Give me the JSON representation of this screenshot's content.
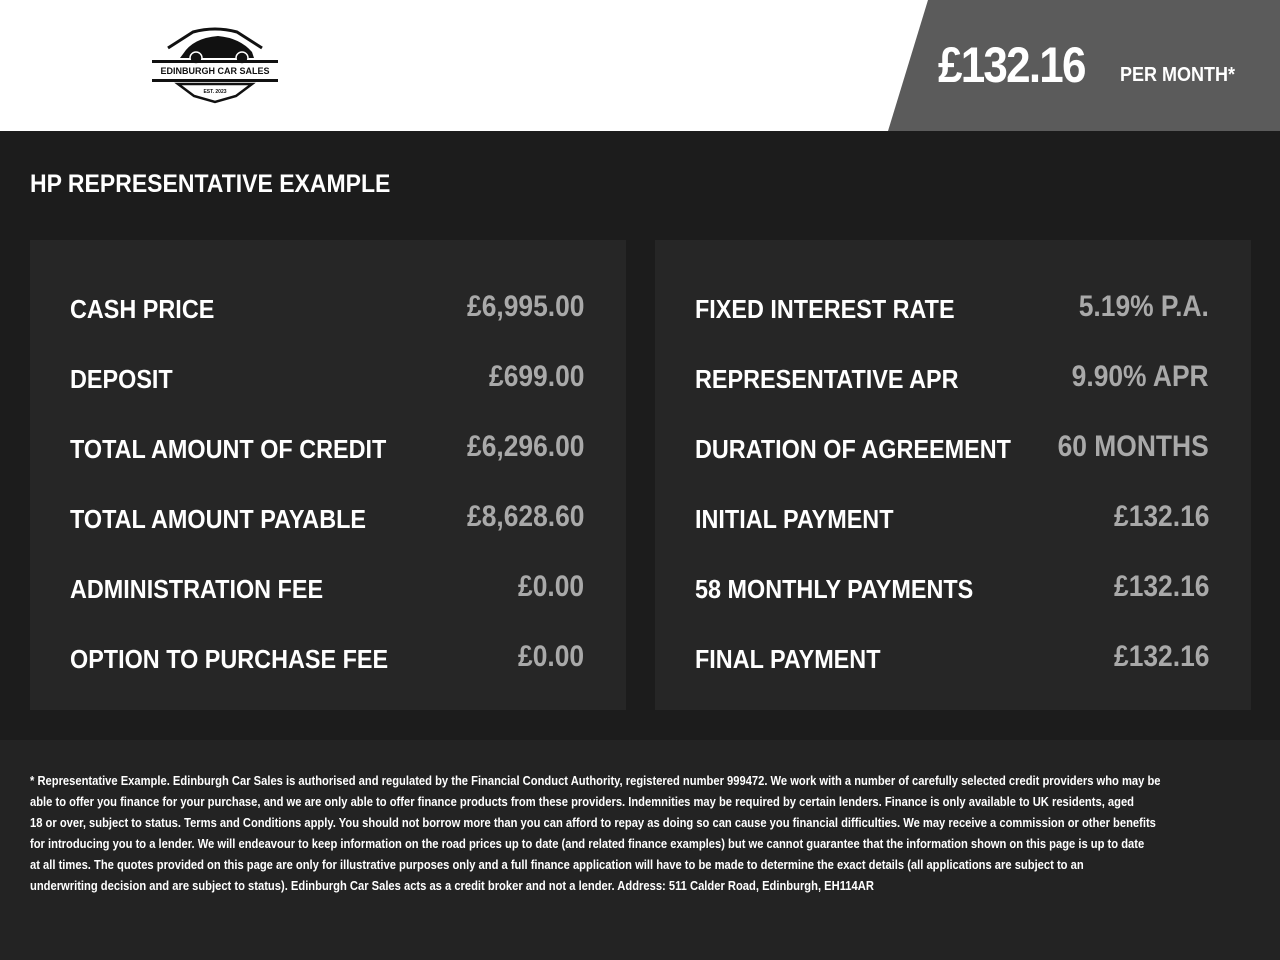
{
  "header": {
    "logo": {
      "name": "Edinburgh Car Sales",
      "text": "EDINBURGH CAR SALES",
      "est": "EST. 2023"
    },
    "price": "£132.16",
    "per_month": "PER MONTH*",
    "colors": {
      "price_box": "#5b5b5b",
      "background": "#1c1c1c",
      "panel": "#262626",
      "value_text": "#a9a9a9"
    }
  },
  "heading": "HP REPRESENTATIVE EXAMPLE",
  "left_panel": [
    {
      "label": "CASH PRICE",
      "value": "£6,995.00"
    },
    {
      "label": "DEPOSIT",
      "value": "£699.00"
    },
    {
      "label": "TOTAL AMOUNT OF CREDIT",
      "value": "£6,296.00"
    },
    {
      "label": "TOTAL AMOUNT PAYABLE",
      "value": "£8,628.60"
    },
    {
      "label": "ADMINISTRATION FEE",
      "value": "£0.00"
    },
    {
      "label": "OPTION TO PURCHASE FEE",
      "value": "£0.00"
    }
  ],
  "right_panel": [
    {
      "label": "FIXED INTEREST RATE",
      "value": "5.19% P.A."
    },
    {
      "label": "REPRESENTATIVE APR",
      "value": "9.90% APR"
    },
    {
      "label": "DURATION OF AGREEMENT",
      "value": "60 MONTHS"
    },
    {
      "label": "INITIAL PAYMENT",
      "value": "£132.16"
    },
    {
      "label": "58 MONTHLY PAYMENTS",
      "value": "£132.16"
    },
    {
      "label": "FINAL PAYMENT",
      "value": "£132.16"
    }
  ],
  "disclaimer": [
    "* Representative Example. Edinburgh Car Sales is authorised and regulated by the Financial Conduct Authority, registered number 999472. We work with a number of carefully selected credit providers who may be",
    "able to offer you finance for your purchase, and we are only able to offer finance products from these providers. Indemnities may be required by certain lenders. Finance is only available to UK residents, aged",
    "18 or over, subject to status. Terms and Conditions apply. You should not borrow more than you can afford to repay as doing so can cause you financial difficulties. We may receive a commission or other benefits",
    "for introducing you to a lender. We will endeavour to keep information on the road prices up to date (and related finance examples) but we cannot guarantee that the information shown on this page is up to date",
    "at all times. The quotes provided on this page are only for illustrative purposes only and a full finance application will have to be made to determine the exact details (all applications are subject to an",
    "underwriting decision and are subject to status). Edinburgh Car Sales acts as a credit broker and not a lender. Address: 511 Calder Road, Edinburgh, EH114AR"
  ]
}
